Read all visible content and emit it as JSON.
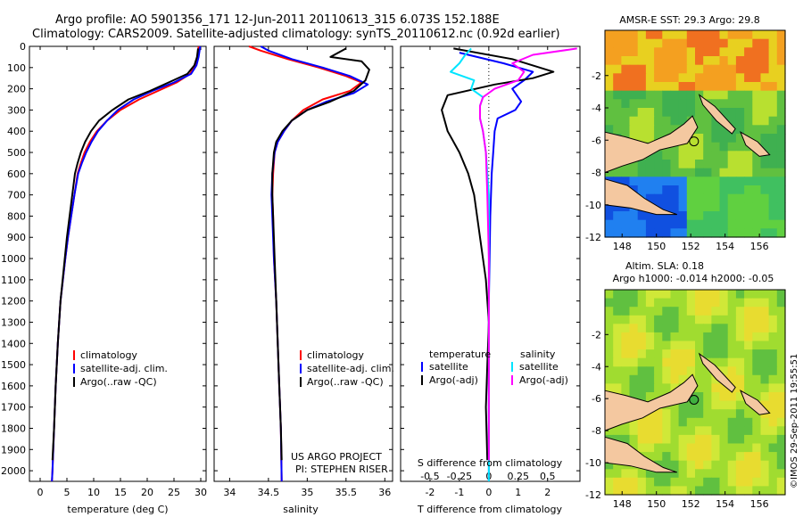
{
  "title": {
    "line1": "Argo profile: AO 5901356_171 12-Jun-2011 20110613_315 6.073S 152.188E",
    "line2": "Climatology: CARS2009. Satellite-adjusted climatology: synTS_20110612.nc (0.92d earlier)"
  },
  "colors": {
    "climatology": "#ff0000",
    "satellite": "#0000ff",
    "argo": "#000000",
    "sat_s": "#00e5ff",
    "argo_s": "#ff00ff"
  },
  "chart_data": [
    {
      "type": "line",
      "name": "temperature",
      "xlabel": "temperature (deg C)",
      "xlim": [
        -2,
        31
      ],
      "ylim": [
        0,
        2050
      ],
      "y_inverted": true,
      "xticks": [
        0,
        5,
        10,
        15,
        20,
        25,
        30
      ],
      "yticks": [
        0,
        100,
        200,
        300,
        400,
        500,
        600,
        700,
        800,
        900,
        1000,
        1100,
        1200,
        1300,
        1400,
        1500,
        1600,
        1700,
        1800,
        1900,
        2000
      ],
      "legend": [
        "climatology",
        "satellite-adj. clim.",
        "Argo(..raw -QC)"
      ],
      "series": [
        {
          "name": "climatology",
          "color": "#ff0000",
          "points": [
            [
              29.6,
              0
            ],
            [
              29.4,
              50
            ],
            [
              29.0,
              90
            ],
            [
              28.0,
              130
            ],
            [
              25.5,
              170
            ],
            [
              22.0,
              210
            ],
            [
              18.5,
              250
            ],
            [
              15.0,
              300
            ],
            [
              12.5,
              350
            ],
            [
              10.6,
              400
            ],
            [
              9.3,
              450
            ],
            [
              8.3,
              500
            ],
            [
              7.6,
              550
            ],
            [
              7.0,
              600
            ],
            [
              6.4,
              700
            ],
            [
              5.8,
              800
            ],
            [
              5.2,
              900
            ],
            [
              4.7,
              1000
            ],
            [
              3.8,
              1200
            ],
            [
              3.3,
              1400
            ],
            [
              2.9,
              1600
            ],
            [
              2.6,
              1800
            ],
            [
              2.3,
              2000
            ],
            [
              2.2,
              2050
            ]
          ]
        },
        {
          "name": "satellite-adj. clim.",
          "color": "#0000ff",
          "points": [
            [
              29.9,
              0
            ],
            [
              29.6,
              50
            ],
            [
              29.2,
              90
            ],
            [
              28.2,
              130
            ],
            [
              25.0,
              170
            ],
            [
              21.0,
              210
            ],
            [
              17.5,
              250
            ],
            [
              14.5,
              300
            ],
            [
              12.5,
              350
            ],
            [
              10.8,
              400
            ],
            [
              9.6,
              450
            ],
            [
              8.6,
              500
            ],
            [
              7.8,
              550
            ],
            [
              7.1,
              600
            ],
            [
              6.4,
              700
            ],
            [
              5.8,
              800
            ],
            [
              5.2,
              900
            ],
            [
              4.7,
              1000
            ],
            [
              3.8,
              1200
            ],
            [
              3.3,
              1400
            ],
            [
              2.9,
              1600
            ],
            [
              2.6,
              1800
            ],
            [
              2.3,
              2000
            ],
            [
              2.2,
              2050
            ]
          ]
        },
        {
          "name": "Argo(..raw -QC)",
          "color": "#000000",
          "points": [
            [
              29.5,
              10
            ],
            [
              29.3,
              50
            ],
            [
              28.8,
              90
            ],
            [
              27.5,
              130
            ],
            [
              24.0,
              170
            ],
            [
              20.5,
              210
            ],
            [
              16.5,
              250
            ],
            [
              13.5,
              300
            ],
            [
              11.0,
              350
            ],
            [
              9.5,
              400
            ],
            [
              8.4,
              450
            ],
            [
              7.6,
              500
            ],
            [
              7.0,
              550
            ],
            [
              6.5,
              600
            ],
            [
              6.0,
              700
            ],
            [
              5.5,
              800
            ],
            [
              5.0,
              900
            ],
            [
              4.6,
              1000
            ],
            [
              3.8,
              1200
            ],
            [
              3.3,
              1400
            ],
            [
              2.9,
              1600
            ],
            [
              2.6,
              1800
            ],
            [
              2.3,
              1950
            ]
          ]
        }
      ]
    },
    {
      "type": "line",
      "name": "salinity",
      "xlabel": "salinity",
      "xlim": [
        33.8,
        36.1
      ],
      "ylim": [
        0,
        2050
      ],
      "y_inverted": true,
      "xticks": [
        34,
        34.5,
        35,
        35.5,
        36
      ],
      "legend": [
        "climatology",
        "satellite-adj. clim.",
        "Argo(..raw -QC)"
      ],
      "annotation": [
        "US ARGO PROJECT",
        "PI: STEPHEN RISER"
      ],
      "series": [
        {
          "name": "climatology",
          "color": "#ff0000",
          "points": [
            [
              34.25,
              0
            ],
            [
              34.4,
              20
            ],
            [
              34.75,
              60
            ],
            [
              35.15,
              100
            ],
            [
              35.5,
              140
            ],
            [
              35.7,
              170
            ],
            [
              35.55,
              210
            ],
            [
              35.2,
              250
            ],
            [
              34.95,
              300
            ],
            [
              34.8,
              350
            ],
            [
              34.7,
              400
            ],
            [
              34.62,
              450
            ],
            [
              34.58,
              500
            ],
            [
              34.56,
              600
            ],
            [
              34.55,
              700
            ],
            [
              34.56,
              800
            ],
            [
              34.57,
              1000
            ],
            [
              34.6,
              1200
            ],
            [
              34.62,
              1400
            ],
            [
              34.64,
              1600
            ],
            [
              34.66,
              1800
            ],
            [
              34.67,
              2050
            ]
          ]
        },
        {
          "name": "satellite-adj. clim.",
          "color": "#0000ff",
          "points": [
            [
              34.4,
              0
            ],
            [
              34.5,
              20
            ],
            [
              34.8,
              60
            ],
            [
              35.2,
              100
            ],
            [
              35.55,
              140
            ],
            [
              35.78,
              180
            ],
            [
              35.6,
              220
            ],
            [
              35.25,
              260
            ],
            [
              35.0,
              300
            ],
            [
              34.8,
              350
            ],
            [
              34.7,
              400
            ],
            [
              34.62,
              450
            ],
            [
              34.58,
              500
            ],
            [
              34.55,
              600
            ],
            [
              34.54,
              700
            ],
            [
              34.55,
              800
            ],
            [
              34.57,
              1000
            ],
            [
              34.6,
              1200
            ],
            [
              34.62,
              1400
            ],
            [
              34.64,
              1600
            ],
            [
              34.66,
              1800
            ],
            [
              34.67,
              2050
            ]
          ]
        },
        {
          "name": "Argo(..raw -QC)",
          "color": "#000000",
          "points": [
            [
              35.5,
              10
            ],
            [
              35.3,
              50
            ],
            [
              35.7,
              70
            ],
            [
              35.8,
              110
            ],
            [
              35.75,
              160
            ],
            [
              35.6,
              210
            ],
            [
              35.3,
              260
            ],
            [
              35.0,
              300
            ],
            [
              34.8,
              350
            ],
            [
              34.68,
              400
            ],
            [
              34.6,
              450
            ],
            [
              34.57,
              500
            ],
            [
              34.55,
              600
            ],
            [
              34.55,
              700
            ],
            [
              34.56,
              800
            ],
            [
              34.58,
              1000
            ],
            [
              34.6,
              1200
            ],
            [
              34.62,
              1400
            ],
            [
              34.64,
              1600
            ],
            [
              34.66,
              1800
            ],
            [
              34.67,
              1950
            ]
          ]
        }
      ]
    },
    {
      "type": "line",
      "name": "differences",
      "xlabel": "T difference from climatology",
      "xlabel_top": "S difference from climatology",
      "xlim": [
        -3,
        3.1
      ],
      "ylim": [
        0,
        2050
      ],
      "y_inverted": true,
      "xticks": [
        -2,
        -1,
        0,
        1,
        2
      ],
      "xticks_s": [
        -0.5,
        -0.25,
        0,
        0.25,
        0.5
      ],
      "legend_t": [
        "temperature",
        "satellite",
        "Argo(-adj)"
      ],
      "legend_s": [
        "salinity",
        "satellite",
        "Argo(-adj)"
      ],
      "series": [
        {
          "name": "T satellite",
          "color": "#0000ff",
          "points": [
            [
              -1.0,
              30
            ],
            [
              0.5,
              80
            ],
            [
              1.5,
              120
            ],
            [
              1.2,
              160
            ],
            [
              0.8,
              200
            ],
            [
              1.1,
              260
            ],
            [
              0.9,
              300
            ],
            [
              0.3,
              340
            ],
            [
              0.2,
              400
            ],
            [
              0.15,
              500
            ],
            [
              0.1,
              600
            ],
            [
              0.05,
              800
            ],
            [
              0.0,
              1200
            ],
            [
              0.0,
              1600
            ],
            [
              0.0,
              2050
            ]
          ]
        },
        {
          "name": "T Argo(-adj)",
          "color": "#000000",
          "points": [
            [
              -1.2,
              10
            ],
            [
              0.8,
              60
            ],
            [
              2.2,
              120
            ],
            [
              1.5,
              150
            ],
            [
              0.2,
              180
            ],
            [
              -1.4,
              230
            ],
            [
              -1.6,
              300
            ],
            [
              -1.4,
              400
            ],
            [
              -1.0,
              500
            ],
            [
              -0.7,
              600
            ],
            [
              -0.5,
              700
            ],
            [
              -0.3,
              900
            ],
            [
              -0.1,
              1100
            ],
            [
              0.0,
              1300
            ],
            [
              -0.05,
              1500
            ],
            [
              -0.1,
              1700
            ],
            [
              -0.05,
              1950
            ]
          ]
        },
        {
          "name": "S satellite",
          "color": "#00e5ff",
          "points": [
            [
              -0.6,
              10
            ],
            [
              -0.8,
              40
            ],
            [
              -1.0,
              80
            ],
            [
              -1.3,
              120
            ],
            [
              -0.5,
              160
            ],
            [
              -0.6,
              200
            ],
            [
              -0.2,
              240
            ],
            [
              -0.3,
              280
            ],
            [
              -0.3,
              340
            ],
            [
              -0.2,
              400
            ],
            [
              -0.1,
              500
            ],
            [
              0.0,
              700
            ],
            [
              0.0,
              1200
            ],
            [
              0.0,
              1700
            ],
            [
              0.0,
              2050
            ]
          ]
        },
        {
          "name": "S Argo(-adj)",
          "color": "#ff00ff",
          "points": [
            [
              3.0,
              10
            ],
            [
              1.5,
              40
            ],
            [
              0.8,
              80
            ],
            [
              1.2,
              120
            ],
            [
              1.0,
              160
            ],
            [
              0.2,
              200
            ],
            [
              -0.2,
              240
            ],
            [
              -0.3,
              280
            ],
            [
              -0.3,
              340
            ],
            [
              -0.2,
              400
            ],
            [
              -0.1,
              500
            ],
            [
              -0.05,
              700
            ],
            [
              0.0,
              1000
            ],
            [
              0.0,
              1300
            ],
            [
              0.0,
              1600
            ],
            [
              0.0,
              1950
            ]
          ]
        }
      ]
    }
  ],
  "maps": [
    {
      "title": "AMSR-E SST: 29.3 Argo: 29.8",
      "xticks": [
        148,
        150,
        152,
        154,
        156
      ],
      "yticks": [
        -2,
        -4,
        -6,
        -8,
        -10,
        -12
      ],
      "xlim": [
        147,
        157.5
      ],
      "ylim": [
        -12,
        0.8
      ]
    },
    {
      "title_line1": "Altim. SLA: 0.18",
      "title_line2": "Argo h1000: -0.014 h2000: -0.05",
      "xticks": [
        148,
        150,
        152,
        154,
        156
      ],
      "yticks": [
        -2,
        -4,
        -6,
        -8,
        -10,
        -12
      ],
      "xlim": [
        147,
        157.5
      ],
      "ylim": [
        -12,
        0.8
      ]
    }
  ],
  "stamp": "©IMOS 29-Sep-2011 19:55:51"
}
